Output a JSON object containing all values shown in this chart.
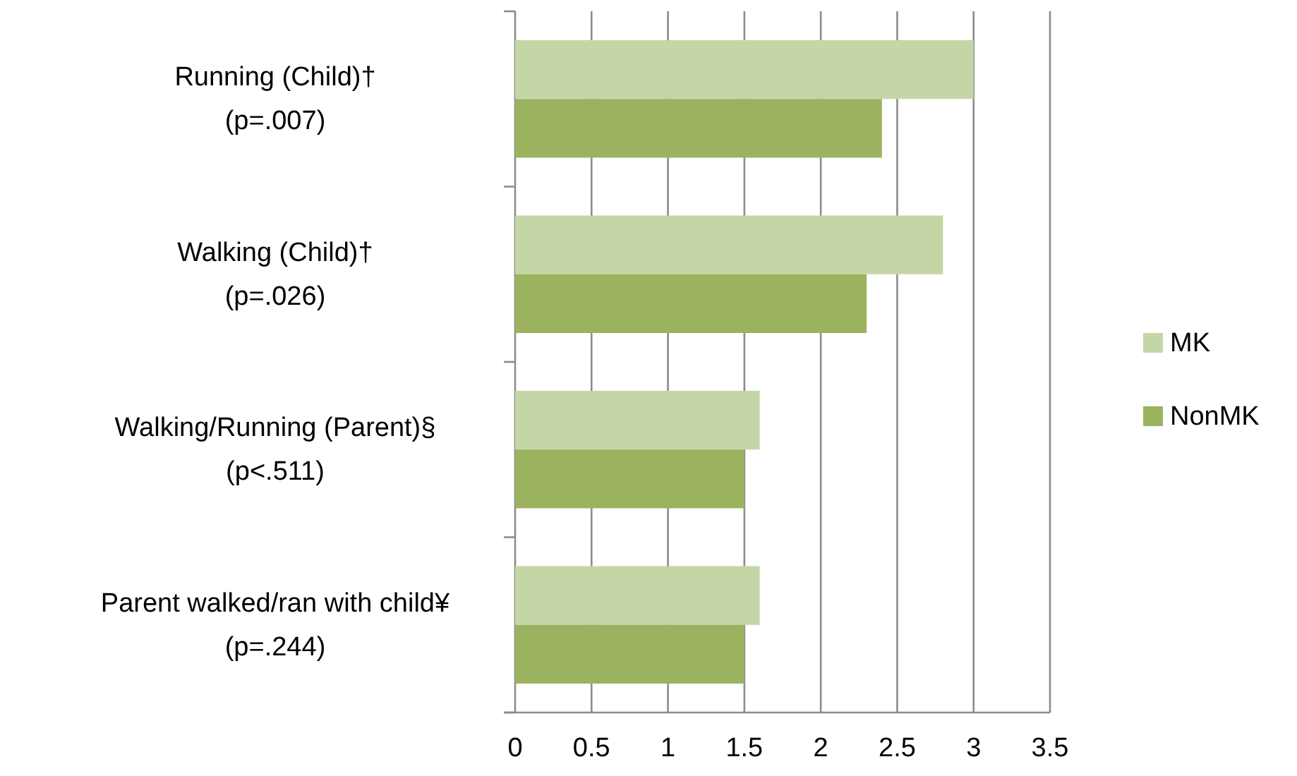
{
  "chart_data": {
    "type": "bar",
    "orientation": "horizontal",
    "categories": [
      "Running (Child)†\n(p=.007)",
      "Walking (Child)†\n(p=.026)",
      "Walking/Running (Parent)§\n(p<.511)",
      "Parent walked/ran with child¥\n(p=.244)"
    ],
    "series": [
      {
        "name": "MK",
        "color": "#c4d6a6",
        "values": [
          3.0,
          2.8,
          1.6,
          1.6
        ]
      },
      {
        "name": "NonMK",
        "color": "#9bb35f",
        "values": [
          2.4,
          2.3,
          1.5,
          1.5
        ]
      }
    ],
    "xlim": [
      0,
      3.5
    ],
    "xticks": [
      0,
      0.5,
      1,
      1.5,
      2,
      2.5,
      3,
      3.5
    ],
    "grid": "x",
    "legend": "right"
  }
}
